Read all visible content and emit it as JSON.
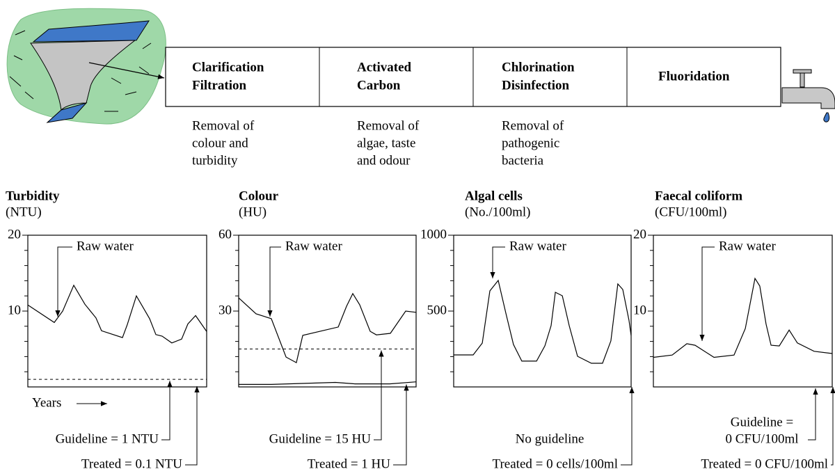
{
  "process": {
    "steps": [
      {
        "title_lines": [
          "Clarification",
          "Filtration"
        ],
        "description_lines": [
          "Removal of",
          "colour and",
          "turbidity"
        ]
      },
      {
        "title_lines": [
          "Activated",
          "Carbon"
        ],
        "description_lines": [
          "Removal of",
          "algae, taste",
          "and odour"
        ]
      },
      {
        "title_lines": [
          "Chlorination",
          "Disinfection"
        ],
        "description_lines": [
          "Removal of",
          "pathogenic",
          "bacteria"
        ]
      },
      {
        "title_lines": [
          "Fluoridation"
        ],
        "description_lines": []
      }
    ]
  },
  "chart_data": [
    {
      "type": "line",
      "title": "Turbidity",
      "unit": "(NTU)",
      "x_label": "Years",
      "xlim": [
        0,
        100
      ],
      "ylim": [
        0,
        20
      ],
      "yticks": [
        10,
        20
      ],
      "yminorticks": [
        2,
        4,
        6,
        8,
        12,
        14,
        16,
        18
      ],
      "x": [
        0,
        14.8,
        19.5,
        25.7,
        31.9,
        38.1,
        41.2,
        52.9,
        55.6,
        60.7,
        68.1,
        71.6,
        75.1,
        80.5,
        86,
        89.5,
        93.8,
        100
      ],
      "series": [
        {
          "name": "Raw water",
          "color": "#000000",
          "values": [
            10.8,
            8.5,
            10,
            13.4,
            10.9,
            9.1,
            7.4,
            6.5,
            8.2,
            12,
            9,
            6.9,
            6.7,
            5.8,
            6.3,
            8.3,
            9.4,
            7.3
          ]
        }
      ],
      "guideline": {
        "value": 1,
        "label_lines": [
          "Guideline = 1 NTU"
        ]
      },
      "treated": {
        "value": 0.1,
        "label": "Treated = 0.1 NTU"
      }
    },
    {
      "type": "line",
      "title": "Colour",
      "unit": "(HU)",
      "xlim": [
        0,
        100
      ],
      "ylim": [
        0,
        60
      ],
      "yticks": [
        30,
        60
      ],
      "yminorticks": [
        6,
        12,
        18,
        24,
        36,
        42,
        48,
        54
      ],
      "x": [
        0,
        9.8,
        18.4,
        26.7,
        32.5,
        36.1,
        56.1,
        60.8,
        64.3,
        68.2,
        74.1,
        77.6,
        85.5,
        94.1,
        100
      ],
      "series": [
        {
          "name": "Raw water",
          "color": "#000000",
          "values": [
            35.2,
            28.9,
            27,
            11.8,
            9.6,
            20.4,
            23.7,
            31.9,
            36.9,
            32.5,
            22,
            20.6,
            21.2,
            30,
            29.5
          ]
        }
      ],
      "guideline": {
        "value": 15,
        "label_lines": [
          "Guideline = 15 HU"
        ]
      },
      "treated": {
        "value": 1,
        "label": "Treated = 1 HU",
        "x": [
          0,
          18.4,
          54.5,
          65.5,
          85.1,
          100
        ],
        "values": [
          1,
          1,
          1.8,
          1.2,
          1.2,
          2
        ]
      }
    },
    {
      "type": "line",
      "title": "Algal cells",
      "unit": "(No./100ml)",
      "xlim": [
        0,
        100
      ],
      "ylim": [
        0,
        1000
      ],
      "yticks": [
        500,
        1000
      ],
      "yminorticks": [
        100,
        200,
        300,
        400,
        600,
        700,
        800,
        900
      ],
      "x": [
        0,
        11,
        16.1,
        20.4,
        25.1,
        29.4,
        33.7,
        38.4,
        46.7,
        51.4,
        54.9,
        57.3,
        61.2,
        65.1,
        69.8,
        77.6,
        83.9,
        88.6,
        92.5,
        95.3,
        98.8,
        100
      ],
      "series": [
        {
          "name": "Raw water",
          "color": "#000000",
          "values": [
            211,
            211,
            289,
            633,
            702,
            486,
            280,
            170,
            170,
            271,
            404,
            624,
            601,
            404,
            202,
            156,
            156,
            303,
            679,
            642,
            440,
            339
          ]
        }
      ],
      "guideline": {
        "label_lines": [
          "No guideline"
        ]
      },
      "treated": {
        "value": 0,
        "label": "Treated = 0 cells/100ml"
      }
    },
    {
      "type": "line",
      "title": "Faecal coliform",
      "unit": "(CFU/100ml)",
      "xlim": [
        0,
        100
      ],
      "ylim": [
        0,
        20
      ],
      "yticks": [
        10,
        20
      ],
      "yminorticks": [
        2,
        4,
        6,
        8,
        12,
        14,
        16,
        18
      ],
      "x": [
        0,
        10.5,
        18.7,
        23.3,
        33.9,
        45.1,
        51.4,
        56.8,
        59.5,
        63,
        65.8,
        70.4,
        75.9,
        80.5,
        89.9,
        100
      ],
      "series": [
        {
          "name": "Raw water",
          "color": "#000000",
          "values": [
            3.9,
            4.2,
            5.7,
            5.5,
            3.9,
            4.2,
            7.7,
            14.3,
            13.3,
            8.3,
            5.5,
            5.4,
            7.5,
            5.8,
            4.7,
            4.4
          ]
        }
      ],
      "guideline": {
        "value": 0,
        "label_lines": [
          "Guideline =",
          "0 CFU/100ml"
        ]
      },
      "treated": {
        "value": 0,
        "label": "Treated = 0 CFU/100ml"
      }
    }
  ]
}
